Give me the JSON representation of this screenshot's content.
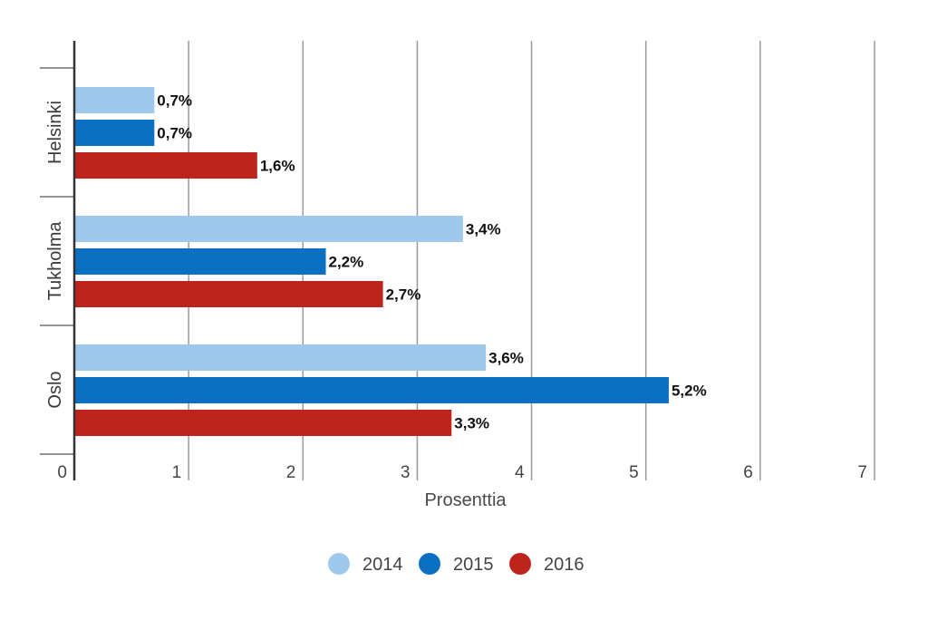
{
  "chart_data": {
    "type": "bar",
    "orientation": "horizontal",
    "categories": [
      "Helsinki",
      "Tukholma",
      "Oslo"
    ],
    "series": [
      {
        "name": "2014",
        "color": "#9fc9ec",
        "values": [
          0.7,
          3.4,
          3.6
        ],
        "labels": [
          "0,7%",
          "3,4%",
          "3,6%"
        ]
      },
      {
        "name": "2015",
        "color": "#0b6fc2",
        "values": [
          0.7,
          2.2,
          5.2
        ],
        "labels": [
          "0,7%",
          "2,2%",
          "5,2%"
        ]
      },
      {
        "name": "2016",
        "color": "#bc241c",
        "values": [
          1.6,
          2.7,
          3.3
        ],
        "labels": [
          "1,6%",
          "2,7%",
          "3,3%"
        ]
      }
    ],
    "xlim": [
      0,
      7
    ],
    "xticks": [
      "0",
      "1",
      "2",
      "3",
      "4",
      "5",
      "6",
      "7"
    ],
    "xlabel": "Prosenttia",
    "ylabel": "",
    "title": "",
    "grid": true,
    "legend_position": "bottom-center"
  }
}
